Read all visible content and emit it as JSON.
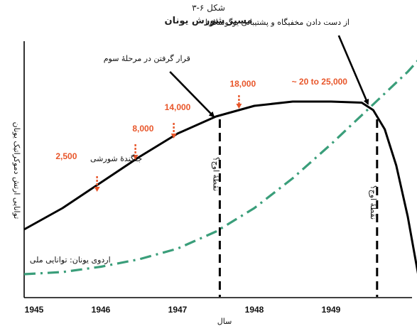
{
  "figure": {
    "label": "شکل ۶-۳",
    "title": "مسیر شورش یونان"
  },
  "chart_data": {
    "type": "line",
    "xlabel": "سال",
    "ylabel": "توانایی ارتش دموکراتیک یونان",
    "x_ticks": [
      "1945",
      "1946",
      "1947",
      "1948",
      "1949"
    ],
    "xlim": [
      1945,
      1950.2
    ],
    "series": [
      {
        "name": "جنگندهٔ شورشی",
        "style": "solid",
        "color": "#000000",
        "x": [
          1945.0,
          1945.5,
          1946.0,
          1946.5,
          1947.0,
          1947.5,
          1948.0,
          1948.5,
          1949.0,
          1949.4,
          1949.55,
          1949.7,
          1949.85,
          1950.0,
          1950.15
        ],
        "y": [
          0.26,
          0.36,
          0.48,
          0.6,
          0.71,
          0.79,
          0.84,
          0.86,
          0.86,
          0.855,
          0.82,
          0.73,
          0.56,
          0.32,
          0.02
        ]
      },
      {
        "name": "اردوی یونان: توانایی ملی",
        "style": "dashdot",
        "color": "#3a9e7a",
        "x": [
          1945.0,
          1945.5,
          1946.0,
          1946.5,
          1947.0,
          1947.5,
          1948.0,
          1948.5,
          1949.0,
          1949.5,
          1950.0,
          1950.2
        ],
        "y": [
          0.05,
          0.06,
          0.085,
          0.12,
          0.17,
          0.25,
          0.36,
          0.5,
          0.66,
          0.83,
          1.0,
          1.08
        ]
      }
    ],
    "data_labels": [
      {
        "text": "2,500",
        "x": 1945.55,
        "y": 0.59
      },
      {
        "text": "8,000",
        "x": 1946.55,
        "y": 0.72
      },
      {
        "text": "14,000",
        "x": 1947.0,
        "y": 0.82
      },
      {
        "text": "18,000",
        "x": 1947.85,
        "y": 0.93
      },
      {
        "text": "~ 20 to 25,000",
        "x": 1948.85,
        "y": 0.94
      }
    ],
    "data_label_arrows": [
      {
        "x": 1945.95,
        "y1": 0.51,
        "y2": 0.44
      },
      {
        "x": 1946.45,
        "y1": 0.66,
        "y2": 0.59
      },
      {
        "x": 1946.95,
        "y1": 0.76,
        "y2": 0.69
      },
      {
        "x": 1947.8,
        "y1": 0.89,
        "y2": 0.83
      }
    ],
    "vertical_markers": [
      {
        "x": 1947.55,
        "label": "نقطهٔ اوج؟"
      },
      {
        "x": 1949.6,
        "label": "نقطهٔ اوج؟"
      }
    ],
    "annotations": [
      {
        "text": "جنگندهٔ شورشی",
        "x": 1946.2,
        "y": 0.58
      },
      {
        "text": "اردوی یونان: توانایی ملی",
        "x": 1945.6,
        "y": 0.105
      }
    ],
    "callouts": [
      {
        "text": "قرار گرفتن در مرحلهٔ سوم",
        "text_x": 1946.6,
        "text_y": 1.05,
        "arrow_from": [
          1946.9,
          1.0
        ],
        "arrow_to": [
          1947.47,
          0.79
        ]
      },
      {
        "text": "از دست دادن مخفیگاه و پشتیبانی یوگوسلاویا",
        "text_x": 1948.3,
        "text_y": 1.22,
        "arrow_from": [
          1949.1,
          1.17
        ],
        "arrow_to": [
          1949.48,
          0.85
        ]
      }
    ]
  }
}
